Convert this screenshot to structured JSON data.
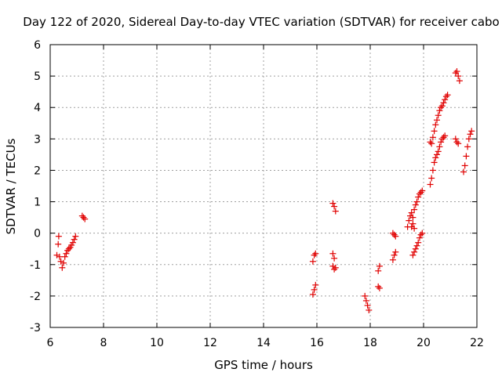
{
  "chart_data": {
    "type": "scatter",
    "title": "Day 122 of 2020, Sidereal Day-to-day VTEC variation (SDTVAR) for receiver cabo",
    "xlabel": "GPS time / hours",
    "ylabel": "SDTVAR / TECUs",
    "xlim": [
      6,
      22
    ],
    "ylim": [
      -3,
      6
    ],
    "xticks": [
      6,
      8,
      10,
      12,
      14,
      16,
      18,
      20,
      22
    ],
    "yticks": [
      -3,
      -2,
      -1,
      0,
      1,
      2,
      3,
      4,
      5,
      6
    ],
    "grid": true,
    "marker": "+",
    "marker_color": "#e00000",
    "series": [
      {
        "name": "SDTVAR",
        "segments": [
          [
            [
              6.25,
              -0.7
            ],
            [
              6.3,
              -0.35
            ],
            [
              6.32,
              -0.1
            ],
            [
              6.35,
              -0.75
            ],
            [
              6.4,
              -0.9
            ],
            [
              6.45,
              -1.1
            ],
            [
              6.5,
              -0.95
            ],
            [
              6.55,
              -0.75
            ],
            [
              6.6,
              -0.65
            ],
            [
              6.65,
              -0.55
            ],
            [
              6.7,
              -0.5
            ],
            [
              6.75,
              -0.45
            ],
            [
              6.8,
              -0.38
            ],
            [
              6.85,
              -0.3
            ],
            [
              6.9,
              -0.2
            ],
            [
              6.95,
              -0.1
            ]
          ],
          [
            [
              7.2,
              0.55
            ],
            [
              7.25,
              0.5
            ],
            [
              7.3,
              0.45
            ]
          ],
          [
            [
              15.85,
              -0.9
            ],
            [
              15.9,
              -0.7
            ],
            [
              15.95,
              -0.65
            ]
          ],
          [
            [
              15.85,
              -1.95
            ],
            [
              15.9,
              -1.8
            ],
            [
              15.95,
              -1.65
            ]
          ],
          [
            [
              16.6,
              0.95
            ],
            [
              16.65,
              0.85
            ],
            [
              16.7,
              0.7
            ]
          ],
          [
            [
              16.6,
              -0.65
            ],
            [
              16.65,
              -0.8
            ]
          ],
          [
            [
              16.6,
              -1.05
            ],
            [
              16.65,
              -1.15
            ],
            [
              16.7,
              -1.1
            ]
          ],
          [
            [
              17.8,
              -2.0
            ],
            [
              17.85,
              -2.15
            ],
            [
              17.9,
              -2.3
            ],
            [
              17.95,
              -2.45
            ]
          ],
          [
            [
              18.3,
              -1.2
            ],
            [
              18.35,
              -1.05
            ]
          ],
          [
            [
              18.3,
              -1.7
            ],
            [
              18.35,
              -1.75
            ]
          ],
          [
            [
              18.85,
              -0.85
            ],
            [
              18.9,
              -0.7
            ],
            [
              18.95,
              -0.6
            ]
          ],
          [
            [
              18.85,
              0.0
            ],
            [
              18.9,
              -0.05
            ],
            [
              18.95,
              -0.1
            ]
          ],
          [
            [
              19.4,
              0.2
            ],
            [
              19.45,
              0.4
            ],
            [
              19.5,
              0.55
            ],
            [
              19.55,
              0.65
            ],
            [
              19.6,
              0.5
            ],
            [
              19.65,
              0.75
            ],
            [
              19.7,
              0.9
            ],
            [
              19.75,
              1.0
            ],
            [
              19.8,
              1.15
            ],
            [
              19.85,
              1.25
            ],
            [
              19.9,
              1.3
            ],
            [
              19.95,
              1.35
            ]
          ],
          [
            [
              19.55,
              0.2
            ],
            [
              19.6,
              0.3
            ],
            [
              19.65,
              0.15
            ]
          ],
          [
            [
              19.6,
              -0.7
            ],
            [
              19.65,
              -0.6
            ],
            [
              19.7,
              -0.5
            ],
            [
              19.75,
              -0.4
            ],
            [
              19.8,
              -0.3
            ],
            [
              19.85,
              -0.15
            ],
            [
              19.9,
              -0.05
            ],
            [
              19.95,
              0.0
            ]
          ],
          [
            [
              20.25,
              1.55
            ],
            [
              20.3,
              1.75
            ],
            [
              20.35,
              2.0
            ],
            [
              20.4,
              2.25
            ],
            [
              20.45,
              2.4
            ],
            [
              20.5,
              2.5
            ],
            [
              20.55,
              2.6
            ],
            [
              20.6,
              2.75
            ],
            [
              20.65,
              2.9
            ],
            [
              20.7,
              3.0
            ],
            [
              20.75,
              3.05
            ],
            [
              20.8,
              3.1
            ]
          ],
          [
            [
              20.25,
              2.9
            ],
            [
              20.3,
              2.85
            ],
            [
              20.35,
              3.05
            ],
            [
              20.4,
              3.25
            ],
            [
              20.45,
              3.45
            ],
            [
              20.5,
              3.6
            ],
            [
              20.55,
              3.75
            ],
            [
              20.6,
              3.9
            ],
            [
              20.65,
              4.0
            ],
            [
              20.7,
              4.05
            ],
            [
              20.75,
              4.15
            ],
            [
              20.8,
              4.25
            ],
            [
              20.85,
              4.35
            ],
            [
              20.9,
              4.4
            ]
          ],
          [
            [
              21.2,
              5.1
            ],
            [
              21.25,
              5.15
            ],
            [
              21.3,
              5.0
            ],
            [
              21.35,
              4.85
            ]
          ],
          [
            [
              21.2,
              3.0
            ],
            [
              21.25,
              2.9
            ],
            [
              21.3,
              2.85
            ]
          ],
          [
            [
              21.5,
              1.95
            ],
            [
              21.55,
              2.15
            ],
            [
              21.6,
              2.45
            ],
            [
              21.65,
              2.75
            ],
            [
              21.7,
              3.0
            ],
            [
              21.75,
              3.15
            ],
            [
              21.8,
              3.25
            ]
          ]
        ]
      }
    ]
  }
}
